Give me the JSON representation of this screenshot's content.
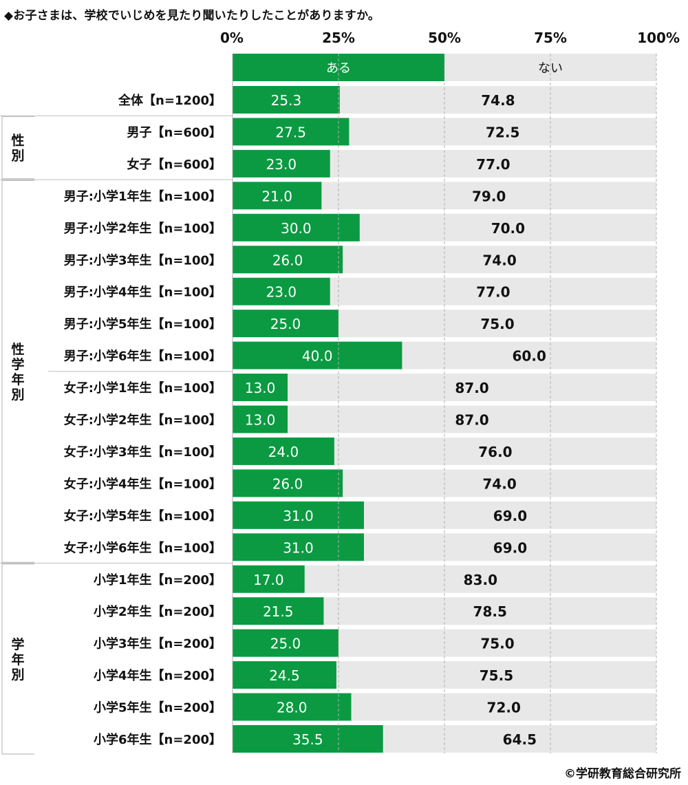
{
  "title": "◆お子さまは、学校でいじめを見たり聞いたりしたことがありますか。",
  "copyright": "©学研教育総合研究所",
  "colors": {
    "yes": "#0b9a42",
    "no": "#e8e8e8",
    "grid": "#b0b0b0",
    "bracket": "#bdbdbd"
  },
  "chart_data": {
    "type": "bar",
    "orientation": "horizontal-stacked-100",
    "xlim": [
      0,
      100
    ],
    "ticks": [
      "0%",
      "25%",
      "50%",
      "75%",
      "100%"
    ],
    "series": [
      {
        "name": "ある",
        "values": [
          25.3,
          27.5,
          23.0,
          21.0,
          30.0,
          26.0,
          23.0,
          25.0,
          40.0,
          13.0,
          13.0,
          24.0,
          26.0,
          31.0,
          31.0,
          17.0,
          21.5,
          25.0,
          24.5,
          28.0,
          35.5
        ]
      },
      {
        "name": "ない",
        "values": [
          74.8,
          72.5,
          77.0,
          79.0,
          70.0,
          74.0,
          77.0,
          75.0,
          60.0,
          87.0,
          87.0,
          76.0,
          74.0,
          69.0,
          69.0,
          83.0,
          78.5,
          75.0,
          75.5,
          72.0,
          64.5
        ]
      }
    ],
    "categories": [
      "全体【n=1200】",
      "男子【n=600】",
      "女子【n=600】",
      "男子:小学1年生【n=100】",
      "男子:小学2年生【n=100】",
      "男子:小学3年生【n=100】",
      "男子:小学4年生【n=100】",
      "男子:小学5年生【n=100】",
      "男子:小学6年生【n=100】",
      "女子:小学1年生【n=100】",
      "女子:小学2年生【n=100】",
      "女子:小学3年生【n=100】",
      "女子:小学4年生【n=100】",
      "女子:小学5年生【n=100】",
      "女子:小学6年生【n=100】",
      "小学1年生【n=200】",
      "小学2年生【n=200】",
      "小学3年生【n=200】",
      "小学4年生【n=200】",
      "小学5年生【n=200】",
      "小学6年生【n=200】"
    ],
    "yes_labels": [
      "25.3",
      "27.5",
      "23.0",
      "21.0",
      "30.0",
      "26.0",
      "23.0",
      "25.0",
      "40.0",
      "13.0",
      "13.0",
      "24.0",
      "26.0",
      "31.0",
      "31.0",
      "17.0",
      "21.5",
      "25.0",
      "24.5",
      "28.0",
      "35.5"
    ],
    "no_labels": [
      "74.8",
      "72.5",
      "77.0",
      "79.0",
      "70.0",
      "74.0",
      "77.0",
      "75.0",
      "60.0",
      "87.0",
      "87.0",
      "76.0",
      "74.0",
      "69.0",
      "69.0",
      "83.0",
      "78.5",
      "75.0",
      "75.5",
      "72.0",
      "64.5"
    ],
    "groups": [
      {
        "label": "性別",
        "rows": [
          1,
          2
        ]
      },
      {
        "label": "性学年別",
        "rows": [
          3,
          14
        ]
      },
      {
        "label": "学年別",
        "rows": [
          15,
          20
        ]
      }
    ]
  }
}
